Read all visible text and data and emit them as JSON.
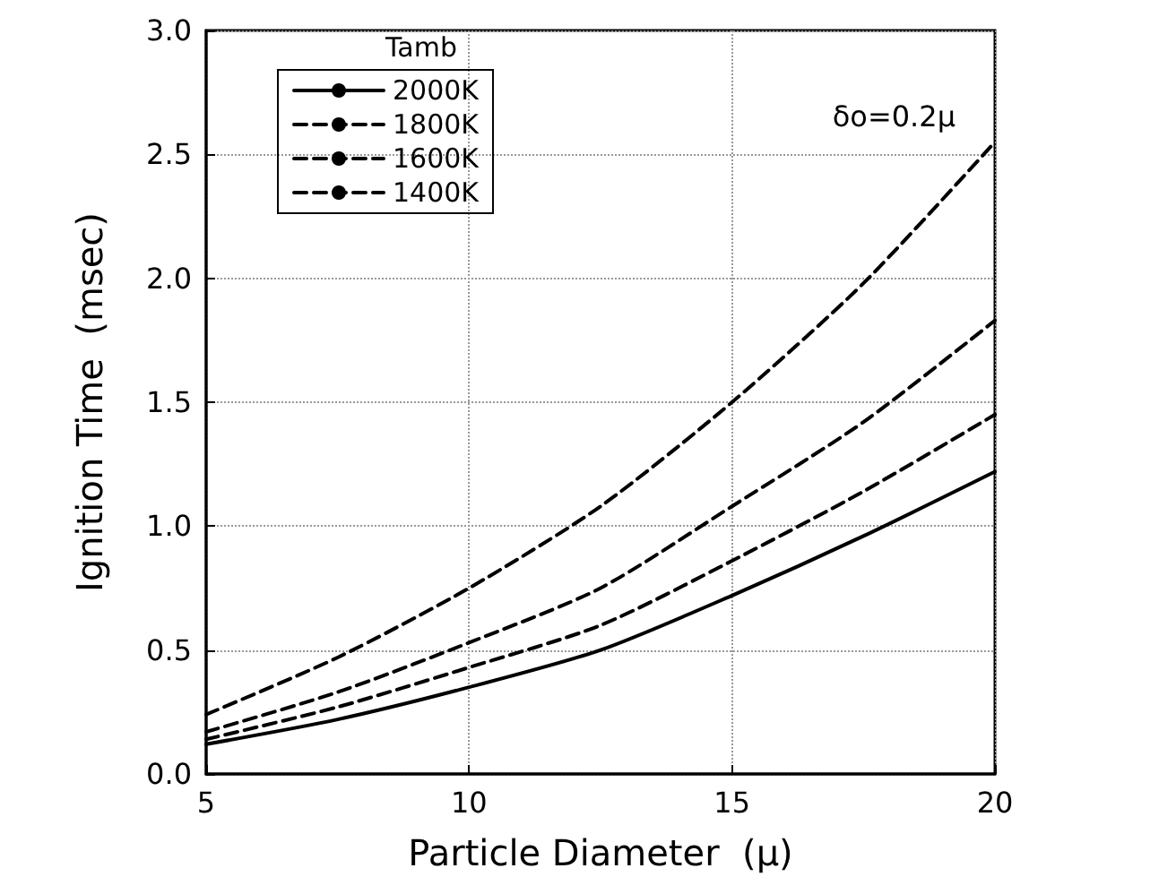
{
  "chart_data": {
    "type": "line",
    "xlabel": "Particle Diameter  (μ)",
    "ylabel": "Ignition Time  (msec)",
    "legend_title": "Tamb",
    "annotations": [
      "δo=0.2μ"
    ],
    "x": [
      5,
      7.5,
      10,
      12.5,
      15,
      17.5,
      20
    ],
    "series": [
      {
        "name": "2000K",
        "color": "#000000",
        "line_style": "solid",
        "values": [
          0.12,
          0.22,
          0.35,
          0.5,
          0.72,
          0.96,
          1.22
        ]
      },
      {
        "name": "1800K",
        "color": "#000000",
        "line_style": "dashed",
        "values": [
          0.14,
          0.27,
          0.43,
          0.6,
          0.86,
          1.14,
          1.45
        ]
      },
      {
        "name": "1600K",
        "color": "#000000",
        "line_style": "dashed",
        "values": [
          0.17,
          0.33,
          0.53,
          0.75,
          1.08,
          1.42,
          1.83
        ]
      },
      {
        "name": "1400K",
        "color": "#000000",
        "line_style": "dashed",
        "values": [
          0.24,
          0.47,
          0.75,
          1.08,
          1.5,
          1.98,
          2.55
        ]
      }
    ],
    "xlim": [
      5,
      20
    ],
    "xticks": [
      5,
      10,
      15,
      20
    ],
    "ylim": [
      0,
      3
    ],
    "yticks": [
      {
        "value": 0,
        "label": "0.0"
      },
      {
        "value": 0.5,
        "label": "0.5"
      },
      {
        "value": 1,
        "label": "1.0"
      },
      {
        "value": 1.5,
        "label": "1.5"
      },
      {
        "value": 2,
        "label": "2.0"
      },
      {
        "value": 2.5,
        "label": "2.5"
      },
      {
        "value": 3,
        "label": "3.0"
      }
    ],
    "grid": true,
    "legend": "top left",
    "marker": "none"
  }
}
